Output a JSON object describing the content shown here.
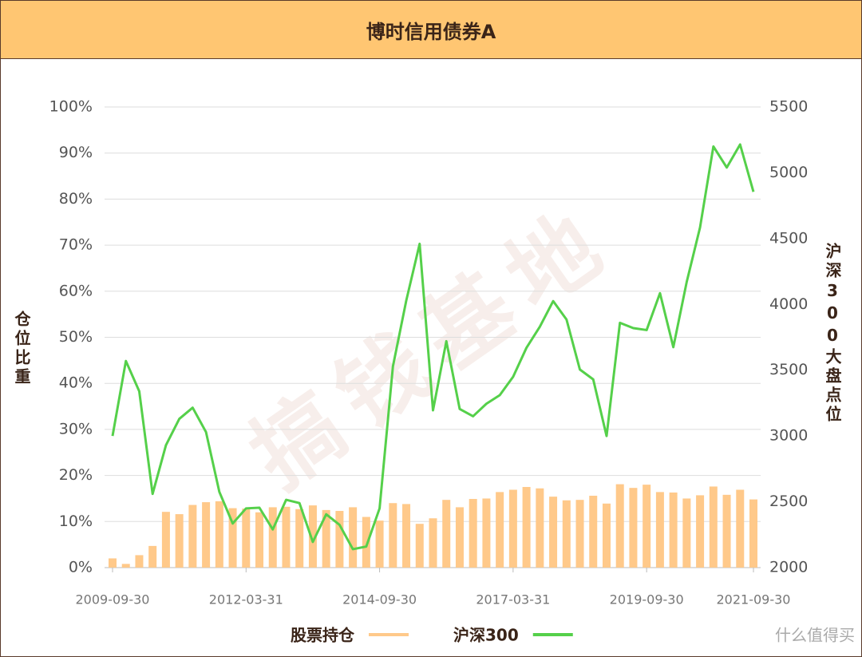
{
  "chart_data": {
    "type": "bar",
    "title": "博时信用债券A",
    "y_label": "仓位比重",
    "y2_label": "沪深300大盘点位",
    "watermark": "搞钱基地",
    "brand": "什么值得买",
    "categories": [
      "2009-09-30",
      null,
      null,
      null,
      null,
      null,
      null,
      null,
      null,
      null,
      "2012-03-31",
      null,
      null,
      null,
      null,
      null,
      null,
      null,
      null,
      null,
      "2014-09-30",
      null,
      null,
      null,
      null,
      null,
      null,
      null,
      null,
      null,
      "2017-03-31",
      null,
      null,
      null,
      null,
      null,
      null,
      null,
      null,
      null,
      "2019-09-30",
      null,
      null,
      null,
      null,
      null,
      null,
      null,
      "2021-09-30"
    ],
    "series": [
      {
        "name": "股票持仓",
        "type": "bar",
        "axis": "y",
        "color": "#ffc98a",
        "values": [
          2.0,
          0.8,
          2.7,
          4.7,
          12.1,
          11.6,
          13.6,
          14.2,
          14.4,
          12.9,
          12.8,
          12.0,
          13.1,
          13.2,
          12.7,
          13.5,
          12.5,
          12.3,
          13.1,
          11.0,
          10.2,
          14.0,
          13.8,
          9.5,
          10.7,
          14.7,
          13.1,
          14.9,
          15.0,
          16.4,
          16.9,
          17.5,
          17.2,
          15.4,
          14.6,
          14.7,
          15.6,
          13.9,
          18.1,
          17.3,
          18.0,
          16.4,
          16.3,
          15.0,
          15.7,
          17.6,
          15.8,
          16.9,
          14.8
        ]
      },
      {
        "name": "沪深300",
        "type": "line",
        "axis": "y2",
        "color": "#55d04a",
        "values": [
          3000,
          3570,
          3340,
          2560,
          2930,
          3130,
          3215,
          3030,
          2575,
          2335,
          2450,
          2455,
          2290,
          2515,
          2490,
          2195,
          2405,
          2325,
          2140,
          2160,
          2450,
          3530,
          4030,
          4460,
          3195,
          3720,
          3205,
          3150,
          3245,
          3310,
          3450,
          3670,
          3830,
          4025,
          3885,
          3505,
          3430,
          3000,
          3860,
          3820,
          3805,
          4085,
          3675,
          4170,
          4585,
          5200,
          5040,
          5215,
          4855
        ]
      }
    ],
    "ylim": [
      0,
      100
    ],
    "yticks": [
      {
        "value": 0,
        "label": "0%"
      },
      {
        "value": 10,
        "label": "10%"
      },
      {
        "value": 20,
        "label": "20%"
      },
      {
        "value": 30,
        "label": "30%"
      },
      {
        "value": 40,
        "label": "40%"
      },
      {
        "value": 50,
        "label": "50%"
      },
      {
        "value": 60,
        "label": "60%"
      },
      {
        "value": 70,
        "label": "70%"
      },
      {
        "value": 80,
        "label": "80%"
      },
      {
        "value": 90,
        "label": "90%"
      },
      {
        "value": 100,
        "label": "100%"
      }
    ],
    "y2lim": [
      2000,
      5500
    ],
    "y2ticks": [
      2000,
      2500,
      3000,
      3500,
      4000,
      4500,
      5000,
      5500
    ],
    "grid": true
  }
}
